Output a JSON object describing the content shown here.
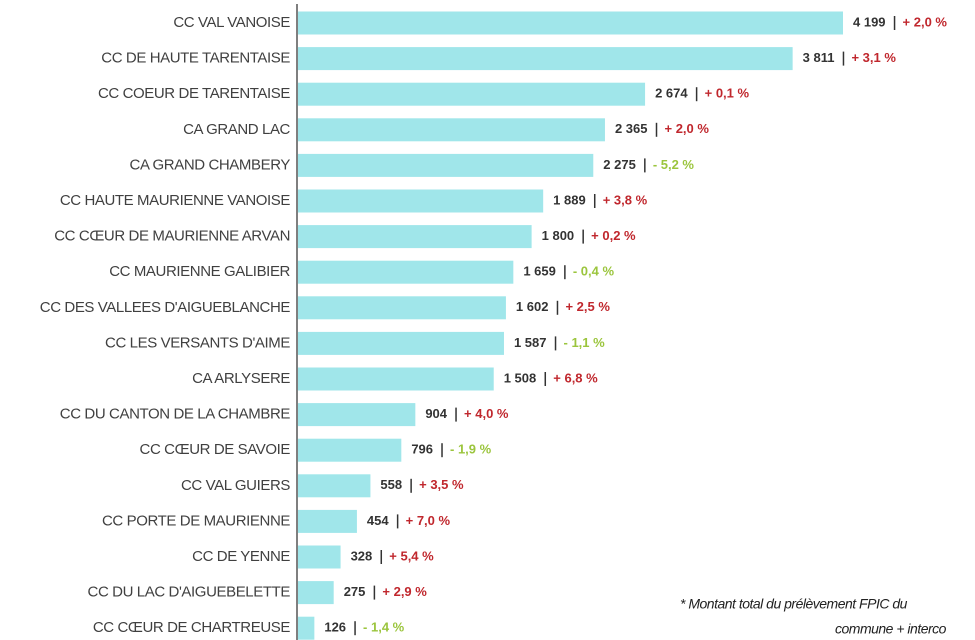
{
  "chart_data": {
    "type": "bar",
    "orientation": "horizontal",
    "categories": [
      "CC VAL VANOISE",
      "CC DE HAUTE TARENTAISE",
      "CC COEUR DE TARENTAISE",
      "CA GRAND LAC",
      "CA GRAND CHAMBERY",
      "CC HAUTE MAURIENNE VANOISE",
      "CC CŒUR DE MAURIENNE ARVAN",
      "CC MAURIENNE GALIBIER",
      "CC DES VALLEES D'AIGUEBLANCHE",
      "CC LES VERSANTS D'AIME",
      "CA ARLYSERE",
      "CC DU CANTON DE LA CHAMBRE",
      "CC CŒUR DE SAVOIE",
      "CC VAL GUIERS",
      "CC PORTE DE MAURIENNE",
      "CC DE YENNE",
      "CC DU LAC D'AIGUEBELETTE",
      "CC CŒUR DE CHARTREUSE"
    ],
    "values": [
      4199,
      3811,
      2674,
      2365,
      2275,
      1889,
      1800,
      1659,
      1602,
      1587,
      1508,
      904,
      796,
      558,
      454,
      328,
      275,
      126
    ],
    "value_labels": [
      "4 199",
      "3 811",
      "2 674",
      "2 365",
      "2 275",
      "1 889",
      "1 800",
      "1 659",
      "1 602",
      "1 587",
      "1 508",
      "904",
      "796",
      "558",
      "454",
      "328",
      "275",
      "126"
    ],
    "changes": [
      2.0,
      3.1,
      0.1,
      2.0,
      -5.2,
      3.8,
      0.2,
      -0.4,
      2.5,
      -1.1,
      6.8,
      4.0,
      -1.9,
      3.5,
      7.0,
      5.4,
      2.9,
      -1.4
    ],
    "change_labels": [
      "+ 2,0 %",
      "+ 3,1 %",
      "+ 0,1 %",
      "+ 2,0 %",
      "- 5,2 %",
      "+ 3,8 %",
      "+ 0,2 %",
      "- 0,4 %",
      "+ 2,5 %",
      "- 1,1 %",
      "+ 6,8 %",
      "+ 4,0 %",
      "- 1,9 %",
      "+ 3,5 %",
      "+ 7,0 %",
      "+ 5,4 %",
      "+ 2,9 %",
      "- 1,4 %"
    ],
    "color": "#a0e6ea",
    "positive_color": "#c0272d",
    "negative_color": "#9bc53d",
    "footnote": [
      "* Montant total du prélèvement FPIC du",
      "commune + interco"
    ]
  }
}
